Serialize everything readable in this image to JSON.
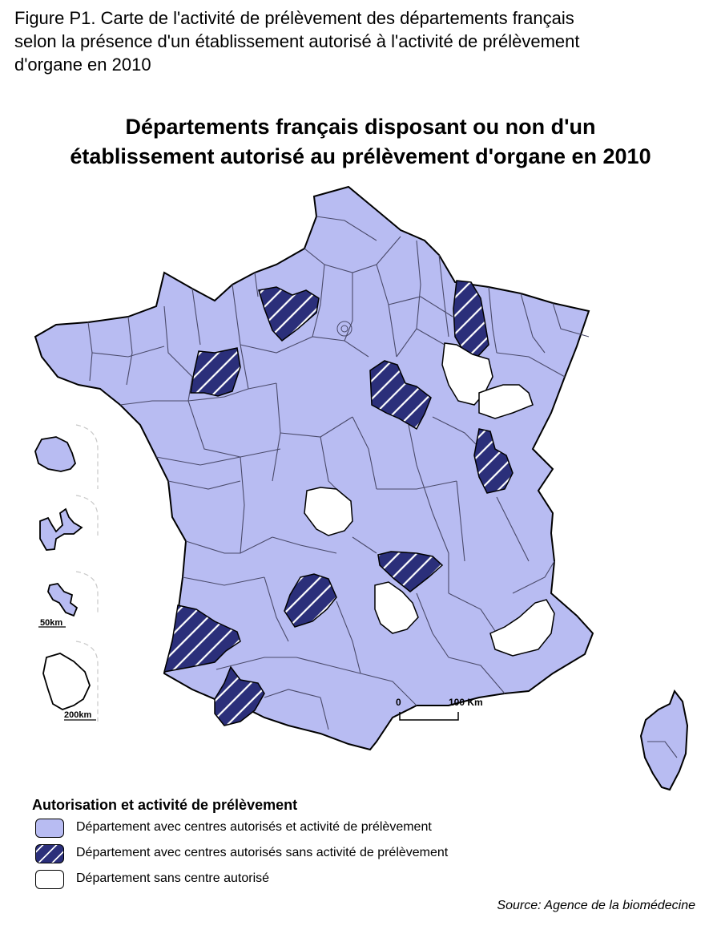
{
  "figure": {
    "title_lines": [
      "Figure P1. Carte de l'activité de prélèvement des départements français",
      "selon la présence d'un établissement autorisé à l'activité de prélèvement",
      "d'organe en 2010"
    ]
  },
  "map": {
    "title_lines": [
      "Départements français disposant ou non d'un",
      "établissement autorisé au prélèvement d'organe en 2010"
    ],
    "scale_bar": {
      "start_label": "0",
      "end_label": "100 Km"
    },
    "insets": [
      {
        "name": "La Réunion",
        "category": "with_activity"
      },
      {
        "name": "Guadeloupe",
        "category": "with_activity"
      },
      {
        "name": "Martinique",
        "category": "with_activity",
        "scale_label": "50km"
      },
      {
        "name": "Guyane",
        "category": "no_center",
        "scale_label": "200km"
      }
    ],
    "colors": {
      "with_activity": "#b8bcf2",
      "without_activity": "#2b2f7a",
      "no_center": "#ffffff",
      "hatch": "#ffffff",
      "outline": "#000000",
      "internal_border": "#4a4a6a"
    }
  },
  "legend": {
    "title": "Autorisation et activité de prélèvement",
    "items": [
      {
        "key": "with_activity",
        "label": "Département avec centres autorisés et activité de prélèvement"
      },
      {
        "key": "without_activity",
        "label": "Département avec centres autorisés sans activité de prélèvement"
      },
      {
        "key": "no_center",
        "label": "Département sans centre autorisé"
      }
    ]
  },
  "source": "Source: Agence de la biomédecine"
}
